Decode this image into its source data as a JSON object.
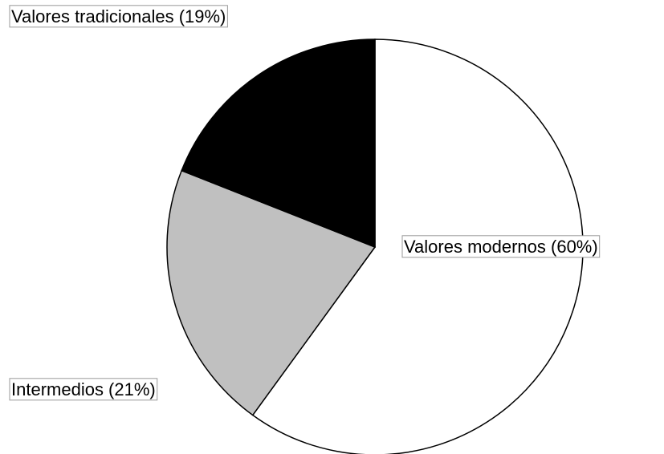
{
  "chart_data": {
    "type": "pie",
    "categories": [
      "Valores modernos (60%)",
      "Intermedios (21%)",
      "Valores tradicionales (19%)"
    ],
    "values": [
      60,
      21,
      19
    ],
    "colors": [
      "#ffffff",
      "#c0c0c0",
      "#000000"
    ]
  }
}
